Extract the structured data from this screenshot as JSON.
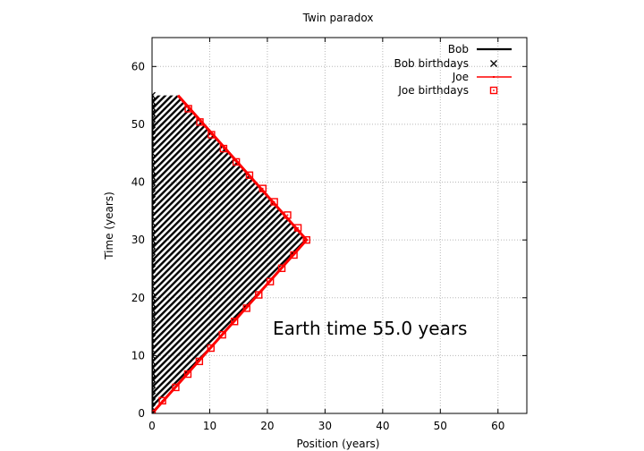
{
  "chart_data": {
    "type": "line",
    "title": "Twin paradox",
    "xlabel": "Position (years)",
    "ylabel": "Time (years)",
    "xlim": [
      0,
      65
    ],
    "ylim": [
      0,
      65
    ],
    "xticks": [
      0,
      10,
      20,
      30,
      40,
      50,
      60
    ],
    "yticks": [
      0,
      10,
      20,
      30,
      40,
      50,
      60
    ],
    "grid": true,
    "legend_position": "top-right",
    "annotation": "Earth time 55.0 years",
    "shaded_region": {
      "pattern": "diagonal hatch",
      "vertices": [
        [
          0,
          0
        ],
        [
          26.8,
          30
        ],
        [
          4.5,
          55
        ],
        [
          0,
          55
        ]
      ]
    },
    "series": [
      {
        "name": "Bob",
        "color": "#000000",
        "x": [
          0,
          0
        ],
        "y": [
          0,
          55
        ]
      },
      {
        "name": "Bob birthdays",
        "color": "#000000",
        "marker": "x",
        "x": [
          0,
          0,
          0,
          0,
          0,
          0,
          0,
          0,
          0,
          0,
          0,
          0,
          0,
          0,
          0,
          0,
          0,
          0,
          0,
          0,
          0,
          0,
          0,
          0,
          0,
          0,
          0,
          0,
          0,
          0,
          0,
          0,
          0,
          0,
          0,
          0,
          0,
          0,
          0,
          0,
          0,
          0,
          0,
          0,
          0,
          0,
          0,
          0,
          0,
          0,
          0,
          0,
          0,
          0,
          0,
          0
        ],
        "y": [
          0,
          1,
          2,
          3,
          4,
          5,
          6,
          7,
          8,
          9,
          10,
          11,
          12,
          13,
          14,
          15,
          16,
          17,
          18,
          19,
          20,
          21,
          22,
          23,
          24,
          25,
          26,
          27,
          28,
          29,
          30,
          31,
          32,
          33,
          34,
          35,
          36,
          37,
          38,
          39,
          40,
          41,
          42,
          43,
          44,
          45,
          46,
          47,
          48,
          49,
          50,
          51,
          52,
          53,
          54,
          55
        ]
      },
      {
        "name": "Joe",
        "color": "#ff0000",
        "x": [
          0,
          26.8,
          4.5
        ],
        "y": [
          0,
          30,
          55
        ]
      },
      {
        "name": "Joe birthdays",
        "color": "#ff0000",
        "marker": "square",
        "x": [
          0,
          1.8,
          4.1,
          6.2,
          8.2,
          10.2,
          12.2,
          14.3,
          16.4,
          18.5,
          20.5,
          22.5,
          24.6,
          26.8,
          25.3,
          23.5,
          21.2,
          19.2,
          16.9,
          14.6,
          12.4,
          10.3,
          8.3,
          6.3
        ],
        "y": [
          0,
          2.2,
          4.5,
          6.8,
          9.0,
          11.3,
          13.6,
          15.9,
          18.2,
          20.5,
          22.8,
          25.1,
          27.4,
          30.0,
          32.1,
          34.3,
          36.6,
          38.9,
          41.2,
          43.5,
          45.8,
          48.2,
          50.4,
          52.7
        ]
      }
    ]
  }
}
